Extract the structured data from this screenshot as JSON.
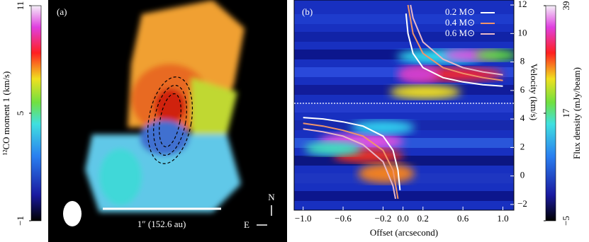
{
  "chart_data": [
    {
      "type": "map",
      "panel_label": "(a)",
      "scale_label": "1″ (152.6 au)",
      "north": "N",
      "east": "E",
      "colorbar": {
        "label": "¹²CO moment 1 (km/s)",
        "lim": [
          -1,
          11
        ],
        "ticks": [
          {
            "value": -1,
            "label": "−1"
          },
          5,
          11
        ]
      }
    },
    {
      "type": "line",
      "panel_label": "(b)",
      "xlabel": "Offset (arcsecond)",
      "ylabel": "Velocity (km/s)",
      "xlim": [
        -1.09,
        1.11
      ],
      "ylim": [
        -2.4,
        12.35
      ],
      "xticks": [
        {
          "value": -1,
          "label": "−1.0"
        },
        {
          "value": -0.6,
          "label": "−0.6"
        },
        {
          "value": -0.2,
          "label": "−0.2"
        },
        {
          "value": 0,
          "label": "0.0"
        },
        0.2,
        0.6,
        {
          "value": 1,
          "label": "1.0"
        }
      ],
      "yticks": [
        {
          "value": -2,
          "label": "−2"
        },
        0,
        2,
        4,
        6,
        8,
        10,
        12
      ],
      "systemic_velocity": 5.1,
      "series": [
        {
          "name": "0.2 M⊙",
          "color": "#ffffff",
          "x": [
            -1.0,
            -0.8,
            -0.6,
            -0.4,
            -0.2,
            -0.1,
            -0.05,
            -0.03,
            null,
            0.03,
            0.05,
            0.1,
            0.2,
            0.4,
            0.6,
            0.8,
            1.0
          ],
          "values": [
            4.1,
            4.0,
            3.8,
            3.5,
            2.8,
            1.8,
            0.4,
            -1.0,
            null,
            11.4,
            10.0,
            8.6,
            7.6,
            6.9,
            6.6,
            6.4,
            6.3
          ]
        },
        {
          "name": "0.4 M⊙",
          "color": "#f0946a",
          "x": [
            -1.0,
            -0.8,
            -0.6,
            -0.4,
            -0.2,
            -0.1,
            -0.05,
            null,
            0.05,
            0.1,
            0.2,
            0.4,
            0.6,
            0.8,
            1.0
          ],
          "values": [
            3.7,
            3.5,
            3.2,
            2.8,
            1.8,
            0.4,
            -1.6,
            null,
            12.0,
            10.0,
            8.6,
            7.6,
            7.2,
            6.9,
            6.7
          ]
        },
        {
          "name": "0.6 M⊙",
          "color": "#e8b8c8",
          "x": [
            -1.0,
            -0.8,
            -0.6,
            -0.4,
            -0.2,
            -0.1,
            -0.075,
            null,
            0.075,
            0.1,
            0.2,
            0.4,
            0.6,
            0.8,
            1.0
          ],
          "values": [
            3.3,
            3.1,
            2.8,
            2.2,
            1.0,
            -0.7,
            -1.6,
            null,
            12.0,
            11.1,
            9.4,
            8.2,
            7.6,
            7.3,
            7.1
          ]
        }
      ],
      "colorbar": {
        "label": "Flux density (mJy/beam)",
        "lim": [
          -5,
          39
        ],
        "ticks": [
          {
            "value": -5,
            "label": "−5"
          },
          17,
          39
        ]
      }
    }
  ]
}
